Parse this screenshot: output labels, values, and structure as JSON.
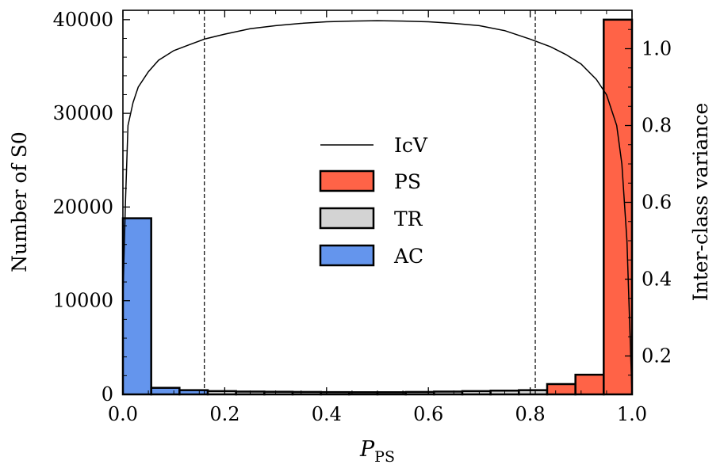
{
  "chart_data": {
    "type": "bar",
    "xlabel_main": "P",
    "xlabel_sub": "PS",
    "ylabel": "Number of S0",
    "y2label": "Inter-class variance",
    "xlim": [
      0.0,
      1.0
    ],
    "ylim": [
      0,
      41000
    ],
    "y2lim": [
      0.1,
      1.1
    ],
    "xticks": [
      "0.0",
      "0.2",
      "0.4",
      "0.6",
      "0.8",
      "1.0"
    ],
    "yticks": [
      "0",
      "10000",
      "20000",
      "30000",
      "40000"
    ],
    "y2ticks": [
      "0.2",
      "0.4",
      "0.6",
      "0.8",
      "1.0"
    ],
    "bin_edges": [
      0.0,
      0.0556,
      0.1111,
      0.1667,
      0.2222,
      0.2778,
      0.3333,
      0.3889,
      0.4444,
      0.5,
      0.5556,
      0.6111,
      0.6667,
      0.7222,
      0.7778,
      0.8333,
      0.8889,
      0.9444,
      1.0
    ],
    "series": [
      {
        "name": "AC",
        "color": "#6495ED",
        "values": [
          18800,
          700,
          450,
          0,
          0,
          0,
          0,
          0,
          0,
          0,
          0,
          0,
          0,
          0,
          0,
          0,
          0,
          0
        ]
      },
      {
        "name": "TR",
        "color": "#D3D3D3",
        "values": [
          0,
          0,
          0,
          350,
          300,
          280,
          260,
          240,
          230,
          230,
          260,
          300,
          350,
          400,
          450,
          0,
          0,
          0
        ]
      },
      {
        "name": "PS",
        "color": "#FF6347",
        "values": [
          0,
          0,
          0,
          0,
          0,
          0,
          0,
          0,
          0,
          0,
          0,
          0,
          0,
          0,
          0,
          1100,
          2100,
          40000
        ]
      }
    ],
    "icv_line": {
      "name": "IcV",
      "x": [
        0.0,
        0.005,
        0.01,
        0.02,
        0.03,
        0.05,
        0.07,
        0.1,
        0.13,
        0.16,
        0.2,
        0.25,
        0.3,
        0.35,
        0.4,
        0.45,
        0.5,
        0.55,
        0.6,
        0.65,
        0.7,
        0.75,
        0.8,
        0.84,
        0.87,
        0.9,
        0.93,
        0.95,
        0.97,
        0.98,
        0.99,
        0.995,
        1.0
      ],
      "y": [
        0.35,
        0.6,
        0.8,
        0.86,
        0.9,
        0.94,
        0.97,
        0.995,
        1.01,
        1.025,
        1.038,
        1.052,
        1.06,
        1.066,
        1.07,
        1.072,
        1.073,
        1.072,
        1.07,
        1.066,
        1.06,
        1.047,
        1.025,
        1.005,
        0.985,
        0.96,
        0.92,
        0.88,
        0.8,
        0.7,
        0.5,
        0.3,
        0.1
      ]
    },
    "thresholds": [
      0.16,
      0.81
    ],
    "legend": {
      "placement": "center",
      "entries": [
        "IcV",
        "PS",
        "TR",
        "AC"
      ]
    }
  }
}
